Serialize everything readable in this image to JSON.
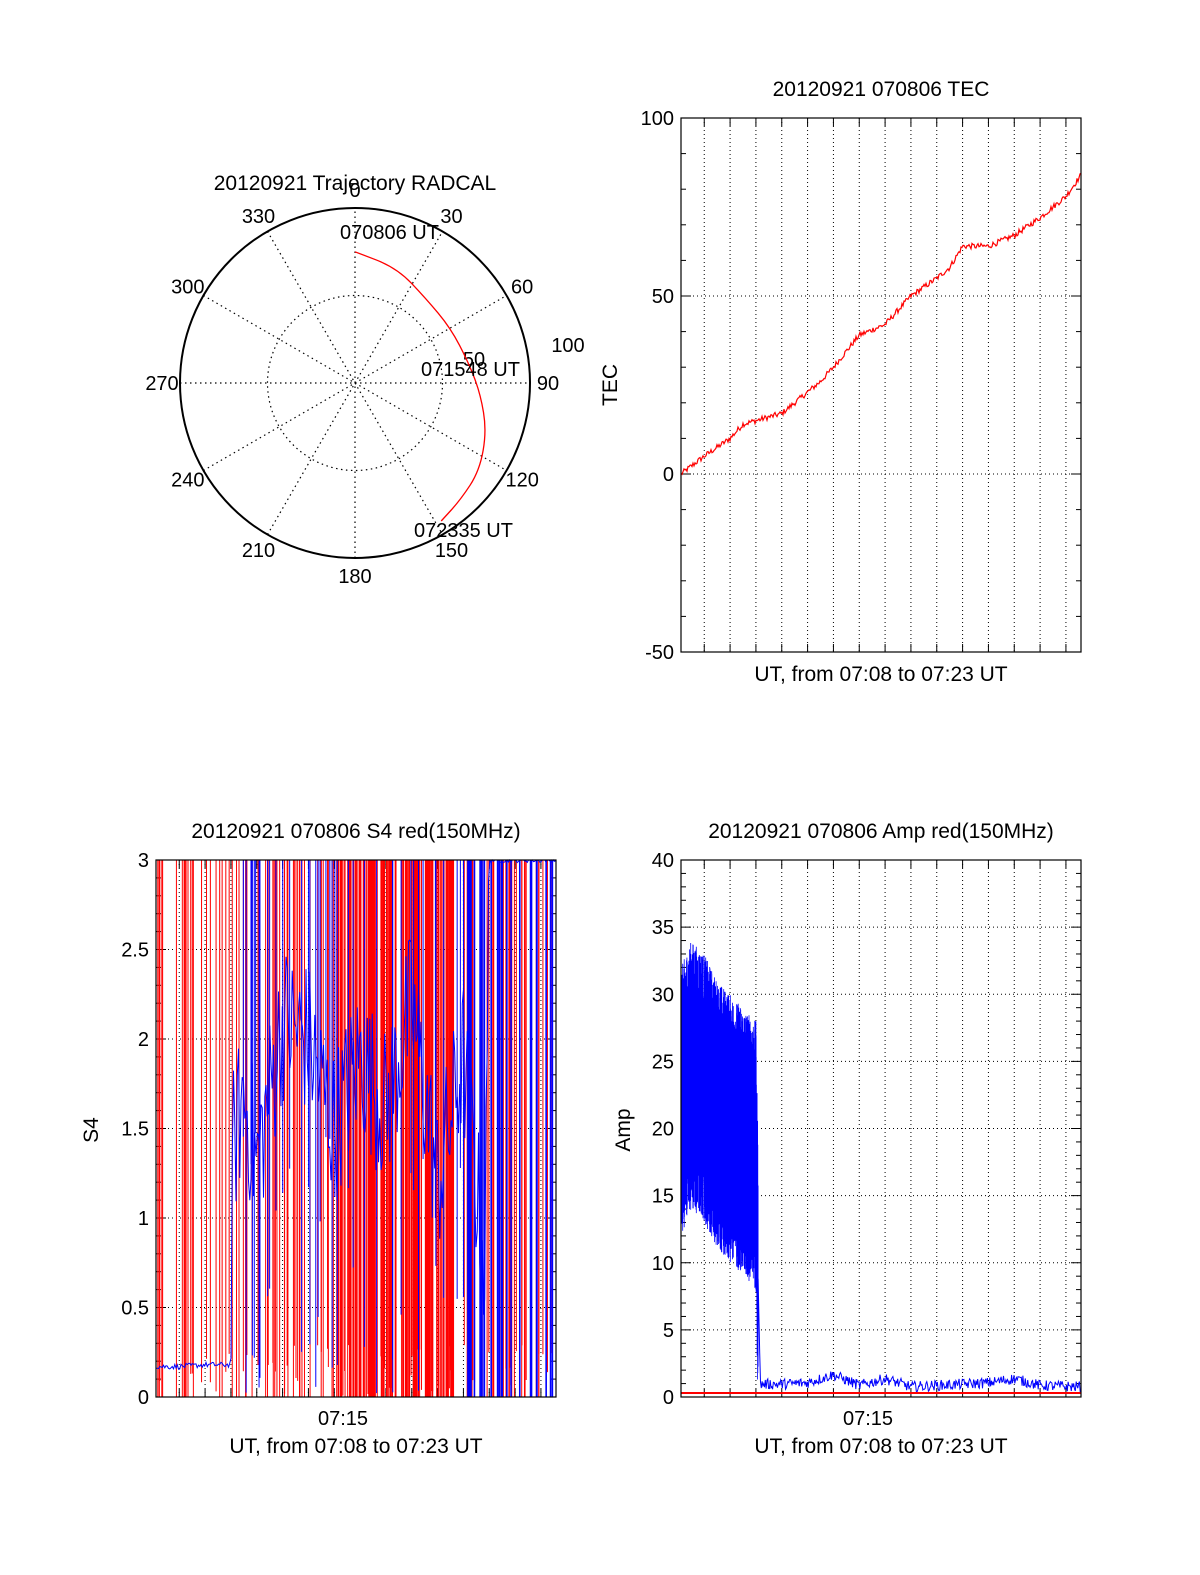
{
  "chart_data": [
    {
      "type": "polar",
      "title": "20120921 Trajectory RADCAL",
      "angle_labels": [
        "0",
        "30",
        "60",
        "90",
        "120",
        "150",
        "180",
        "210",
        "240",
        "270",
        "300",
        "330"
      ],
      "radius_labels": [
        "50",
        "100"
      ],
      "rmax": 100,
      "track_color": "#ff0000",
      "track": [
        {
          "az": 0,
          "r": 75
        },
        {
          "az": 20,
          "r": 70
        },
        {
          "az": 40,
          "r": 63
        },
        {
          "az": 60,
          "r": 63
        },
        {
          "az": 80,
          "r": 66
        },
        {
          "az": 95,
          "r": 72
        },
        {
          "az": 110,
          "r": 80
        },
        {
          "az": 125,
          "r": 87
        },
        {
          "az": 138,
          "r": 90
        },
        {
          "az": 148,
          "r": 93
        }
      ],
      "annotations": [
        {
          "text": "070806 UT",
          "az": 0,
          "r": 75
        },
        {
          "text": "071548 UT",
          "az": 80,
          "r": 66
        },
        {
          "text": "072335 UT",
          "az": 148,
          "r": 93
        }
      ]
    },
    {
      "type": "line",
      "title": "20120921 070806 TEC",
      "xlabel": "UT, from 07:08 to 07:23 UT",
      "ylabel": "TEC",
      "ylim": [
        -50,
        100
      ],
      "yticks": [
        -50,
        0,
        50,
        100
      ],
      "xlim": [
        "07:08:06",
        "07:23:35"
      ],
      "grid": true,
      "series": [
        {
          "color": "#ff0000",
          "x": [
            "07:08:06",
            "07:09:00",
            "07:10:00",
            "07:10:30",
            "07:11:00",
            "07:12:00",
            "07:13:00",
            "07:13:30",
            "07:14:00",
            "07:15:00",
            "07:16:00",
            "07:17:00",
            "07:18:00",
            "07:18:30",
            "07:19:00",
            "07:20:00",
            "07:21:00",
            "07:22:00",
            "07:23:00",
            "07:23:35"
          ],
          "values": [
            0,
            5,
            10,
            14,
            15,
            17,
            23,
            26,
            30,
            39,
            42,
            50,
            55,
            58,
            64,
            64,
            67,
            72,
            78,
            84
          ]
        }
      ]
    },
    {
      "type": "line",
      "title": "20120921 070806 S4 red(150MHz)",
      "xlabel": "UT, from 07:08 to 07:23 UT",
      "ylabel": "S4",
      "ylim": [
        0,
        3
      ],
      "yticks": [
        "0",
        "0.5",
        "1",
        "1.5",
        "2",
        "2.5",
        "3"
      ],
      "xticks": [
        "07:15"
      ],
      "xlim": [
        "07:08:06",
        "07:23:35"
      ],
      "grid": true,
      "series": [
        {
          "color": "#ff0000",
          "x": [
            "07:08:06",
            "07:11:05",
            "07:12:00",
            "07:13:00",
            "07:14:00",
            "07:15:00",
            "07:16:00",
            "07:17:00",
            "07:18:00",
            "07:19:00",
            "07:20:00",
            "07:21:00",
            "07:22:00",
            "07:23:35"
          ],
          "values": [
            3,
            3,
            3,
            3,
            3,
            3,
            3,
            3,
            3,
            3,
            3,
            3,
            3,
            3
          ]
        },
        {
          "color": "#0000ff",
          "x": [
            "07:08:06",
            "07:09:00",
            "07:10:00",
            "07:11:00",
            "07:11:05",
            "07:11:30",
            "07:12:00",
            "07:13:00",
            "07:14:00",
            "07:15:00",
            "07:16:00",
            "07:17:00",
            "07:18:00",
            "07:19:00",
            "07:20:00",
            "07:20:50",
            "07:21:00",
            "07:22:00",
            "07:23:35"
          ],
          "values": [
            0.17,
            0.17,
            0.18,
            0.18,
            1.4,
            1.7,
            1.3,
            2.1,
            2.0,
            1.5,
            1.9,
            1.6,
            2.2,
            1.2,
            1.9,
            0.7,
            3,
            3,
            3
          ]
        }
      ]
    },
    {
      "type": "line",
      "title": "20120921 070806 Amp red(150MHz)",
      "xlabel": "UT, from 07:08 to 07:23 UT",
      "ylabel": "Amp",
      "ylim": [
        0,
        40
      ],
      "yticks": [
        "0",
        "5",
        "10",
        "15",
        "20",
        "25",
        "30",
        "35",
        "40"
      ],
      "xticks": [
        "07:15"
      ],
      "xlim": [
        "07:08:06",
        "07:23:35"
      ],
      "grid": true,
      "series": [
        {
          "color": "#ff0000",
          "x": [
            "07:08:06",
            "07:11:05",
            "07:23:35"
          ],
          "values": [
            0.3,
            0.3,
            0.3
          ]
        },
        {
          "color": "#0000ff",
          "x": [
            "07:08:06",
            "07:08:30",
            "07:09:00",
            "07:09:30",
            "07:10:00",
            "07:10:30",
            "07:11:00",
            "07:11:05",
            "07:11:10",
            "07:12:00",
            "07:13:00",
            "07:14:00",
            "07:15:00",
            "07:16:00",
            "07:17:00",
            "07:18:00",
            "07:19:00",
            "07:20:00",
            "07:21:00",
            "07:22:00",
            "07:23:35"
          ],
          "values": [
            22,
            24,
            23,
            21,
            20,
            19,
            18,
            9,
            0.8,
            0.8,
            0.9,
            1.5,
            0.7,
            1.2,
            0.6,
            0.7,
            0.8,
            0.9,
            1.2,
            0.7,
            0.6
          ]
        }
      ]
    }
  ]
}
